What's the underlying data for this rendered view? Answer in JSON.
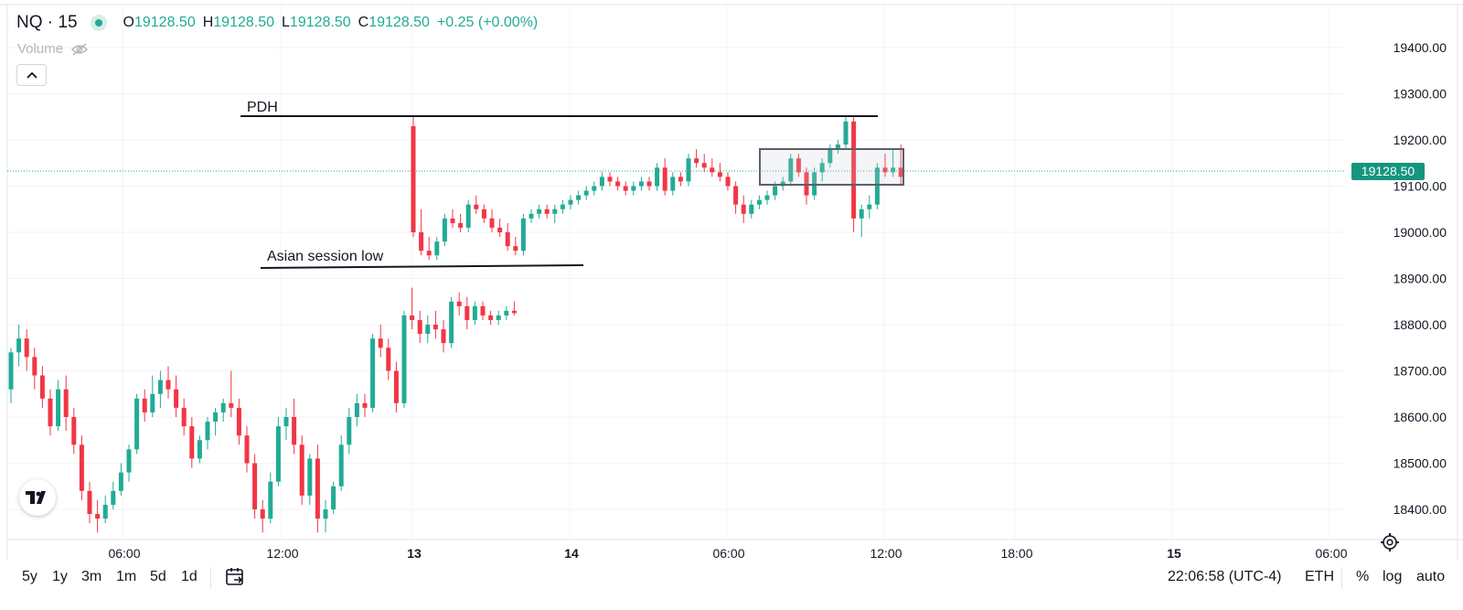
{
  "legend": {
    "symbol": "NQ · 15",
    "open_label": "O",
    "open": "19128.50",
    "high_label": "H",
    "high": "19128.50",
    "low_label": "L",
    "low": "19128.50",
    "close_label": "C",
    "close": "19128.50",
    "change": "+0.25 (+0.00%)",
    "volume_label": "Volume"
  },
  "last_price": "19128.50",
  "annotations": {
    "pdh": "PDH",
    "asian_low": "Asian session low"
  },
  "price_axis": {
    "ticks": [
      "19400.00",
      "19300.00",
      "19200.00",
      "19100.00",
      "19000.00",
      "18900.00",
      "18800.00",
      "18700.00",
      "18600.00",
      "18500.00",
      "18400.00"
    ],
    "tick_values": [
      19400,
      19300,
      19200,
      19100,
      19000,
      18900,
      18800,
      18700,
      18600,
      18500,
      18400
    ]
  },
  "time_axis": {
    "labels": [
      "06:00",
      "12:00",
      "13",
      "14",
      "06:00",
      "12:00",
      "18:00",
      "15",
      "06:00"
    ],
    "bold": [
      false,
      false,
      true,
      true,
      false,
      false,
      false,
      true,
      false
    ]
  },
  "bottom_bar": {
    "ranges": [
      "5y",
      "1y",
      "3m",
      "1m",
      "5d",
      "1d"
    ],
    "time": "22:06:58 (UTC-4)",
    "session": "ETH",
    "percent": "%",
    "log": "log",
    "auto": "auto"
  },
  "colors": {
    "up": "#22ab94",
    "down": "#f23645",
    "grid": "#f0f3fa",
    "badge": "#16957e"
  },
  "icons": {
    "visibility": "eye-off-icon",
    "collapse": "chevron-up-icon",
    "logo": "tradingview-logo-icon",
    "calendar": "calendar-goto-icon",
    "settings": "gear-icon"
  },
  "chart_data": {
    "type": "candlestick",
    "symbol": "NQ",
    "interval": "15",
    "ylim": [
      18350,
      19450
    ],
    "levels": [
      {
        "name": "PDH",
        "value": 19250
      },
      {
        "name": "Asian session low",
        "value": 18940
      }
    ],
    "zone": {
      "high": 19180,
      "low": 19105
    },
    "candles": [
      [
        18660,
        18750,
        18630,
        18740
      ],
      [
        18740,
        18800,
        18710,
        18770
      ],
      [
        18770,
        18790,
        18700,
        18730
      ],
      [
        18730,
        18750,
        18660,
        18690
      ],
      [
        18690,
        18710,
        18620,
        18640
      ],
      [
        18640,
        18660,
        18560,
        18580
      ],
      [
        18580,
        18680,
        18570,
        18660
      ],
      [
        18660,
        18690,
        18570,
        18600
      ],
      [
        18600,
        18620,
        18520,
        18540
      ],
      [
        18540,
        18560,
        18420,
        18440
      ],
      [
        18440,
        18460,
        18370,
        18390
      ],
      [
        18390,
        18420,
        18350,
        18380
      ],
      [
        18380,
        18430,
        18370,
        18410
      ],
      [
        18410,
        18460,
        18400,
        18440
      ],
      [
        18440,
        18500,
        18430,
        18480
      ],
      [
        18480,
        18540,
        18460,
        18530
      ],
      [
        18530,
        18650,
        18520,
        18640
      ],
      [
        18640,
        18660,
        18590,
        18610
      ],
      [
        18610,
        18690,
        18600,
        18650
      ],
      [
        18650,
        18700,
        18620,
        18680
      ],
      [
        18680,
        18710,
        18640,
        18660
      ],
      [
        18660,
        18690,
        18600,
        18620
      ],
      [
        18620,
        18640,
        18560,
        18580
      ],
      [
        18580,
        18600,
        18490,
        18510
      ],
      [
        18510,
        18560,
        18500,
        18550
      ],
      [
        18550,
        18600,
        18530,
        18590
      ],
      [
        18590,
        18620,
        18560,
        18610
      ],
      [
        18610,
        18640,
        18590,
        18630
      ],
      [
        18630,
        18700,
        18600,
        18620
      ],
      [
        18620,
        18640,
        18540,
        18560
      ],
      [
        18560,
        18580,
        18480,
        18500
      ],
      [
        18500,
        18520,
        18380,
        18400
      ],
      [
        18400,
        18420,
        18350,
        18380
      ],
      [
        18380,
        18480,
        18370,
        18460
      ],
      [
        18460,
        18600,
        18450,
        18580
      ],
      [
        18580,
        18620,
        18550,
        18600
      ],
      [
        18600,
        18640,
        18520,
        18540
      ],
      [
        18540,
        18560,
        18410,
        18430
      ],
      [
        18430,
        18520,
        18410,
        18510
      ],
      [
        18510,
        18540,
        18350,
        18380
      ],
      [
        18380,
        18420,
        18350,
        18400
      ],
      [
        18400,
        18460,
        18390,
        18450
      ],
      [
        18450,
        18560,
        18440,
        18540
      ],
      [
        18540,
        18620,
        18520,
        18600
      ],
      [
        18600,
        18650,
        18580,
        18630
      ],
      [
        18630,
        18650,
        18600,
        18620
      ],
      [
        18620,
        18780,
        18610,
        18770
      ],
      [
        18770,
        18800,
        18730,
        18750
      ],
      [
        18750,
        18770,
        18680,
        18700
      ],
      [
        18700,
        18720,
        18610,
        18630
      ],
      [
        18630,
        18830,
        18620,
        18820
      ],
      [
        18820,
        18880,
        18790,
        18810
      ],
      [
        18810,
        18830,
        18760,
        18780
      ],
      [
        18780,
        18820,
        18760,
        18800
      ],
      [
        18800,
        18830,
        18770,
        18790
      ],
      [
        18790,
        18810,
        18740,
        18760
      ],
      [
        18760,
        18860,
        18750,
        18850
      ],
      [
        18850,
        18870,
        18820,
        18840
      ],
      [
        18840,
        18860,
        18790,
        18810
      ],
      [
        18810,
        18850,
        18800,
        18840
      ],
      [
        18840,
        18850,
        18810,
        18820
      ],
      [
        18820,
        18830,
        18800,
        18810
      ],
      [
        18810,
        18830,
        18800,
        18820
      ],
      [
        18820,
        18840,
        18810,
        18830
      ],
      [
        18830,
        18850,
        18820,
        18825
      ],
      [
        19230,
        19250,
        18990,
        19000
      ],
      [
        19000,
        19050,
        18950,
        18960
      ],
      [
        18960,
        18990,
        18940,
        18950
      ],
      [
        18950,
        18990,
        18940,
        18980
      ],
      [
        18980,
        19040,
        18970,
        19030
      ],
      [
        19030,
        19050,
        19010,
        19020
      ],
      [
        19020,
        19040,
        19000,
        19010
      ],
      [
        19010,
        19070,
        19000,
        19060
      ],
      [
        19060,
        19080,
        19040,
        19050
      ],
      [
        19050,
        19060,
        19020,
        19030
      ],
      [
        19030,
        19050,
        19000,
        19010
      ],
      [
        19010,
        19030,
        18990,
        19000
      ],
      [
        19000,
        19020,
        18960,
        18970
      ],
      [
        18970,
        18990,
        18950,
        18960
      ],
      [
        18960,
        19040,
        18950,
        19030
      ],
      [
        19030,
        19050,
        19020,
        19040
      ],
      [
        19040,
        19060,
        19030,
        19050
      ],
      [
        19050,
        19060,
        19030,
        19040
      ],
      [
        19040,
        19060,
        19020,
        19050
      ],
      [
        19050,
        19070,
        19040,
        19060
      ],
      [
        19060,
        19080,
        19050,
        19070
      ],
      [
        19070,
        19090,
        19060,
        19080
      ],
      [
        19080,
        19100,
        19070,
        19090
      ],
      [
        19090,
        19110,
        19080,
        19100
      ],
      [
        19100,
        19130,
        19090,
        19120
      ],
      [
        19120,
        19130,
        19100,
        19110
      ],
      [
        19110,
        19120,
        19090,
        19100
      ],
      [
        19100,
        19110,
        19080,
        19090
      ],
      [
        19090,
        19110,
        19080,
        19100
      ],
      [
        19100,
        19120,
        19090,
        19110
      ],
      [
        19110,
        19120,
        19090,
        19100
      ],
      [
        19100,
        19150,
        19090,
        19140
      ],
      [
        19140,
        19160,
        19080,
        19090
      ],
      [
        19090,
        19130,
        19080,
        19120
      ],
      [
        19120,
        19130,
        19100,
        19110
      ],
      [
        19110,
        19170,
        19100,
        19160
      ],
      [
        19160,
        19180,
        19140,
        19150
      ],
      [
        19150,
        19170,
        19130,
        19140
      ],
      [
        19140,
        19160,
        19120,
        19130
      ],
      [
        19130,
        19150,
        19110,
        19120
      ],
      [
        19120,
        19130,
        19090,
        19100
      ],
      [
        19100,
        19110,
        19040,
        19060
      ],
      [
        19060,
        19080,
        19020,
        19040
      ],
      [
        19040,
        19070,
        19030,
        19060
      ],
      [
        19060,
        19080,
        19050,
        19070
      ],
      [
        19070,
        19090,
        19060,
        19080
      ],
      [
        19080,
        19110,
        19070,
        19100
      ],
      [
        19100,
        19120,
        19090,
        19110
      ],
      [
        19110,
        19170,
        19100,
        19160
      ],
      [
        19160,
        19170,
        19120,
        19130
      ],
      [
        19130,
        19140,
        19060,
        19080
      ],
      [
        19080,
        19140,
        19070,
        19130
      ],
      [
        19130,
        19160,
        19110,
        19150
      ],
      [
        19150,
        19190,
        19140,
        19180
      ],
      [
        19180,
        19200,
        19170,
        19190
      ],
      [
        19190,
        19250,
        19180,
        19240
      ],
      [
        19240,
        19250,
        19000,
        19030
      ],
      [
        19030,
        19060,
        18990,
        19050
      ],
      [
        19050,
        19080,
        19030,
        19060
      ],
      [
        19060,
        19150,
        19050,
        19140
      ],
      [
        19140,
        19170,
        19120,
        19130
      ],
      [
        19130,
        19180,
        19120,
        19140
      ],
      [
        19140,
        19190,
        19100,
        19120
      ]
    ]
  }
}
